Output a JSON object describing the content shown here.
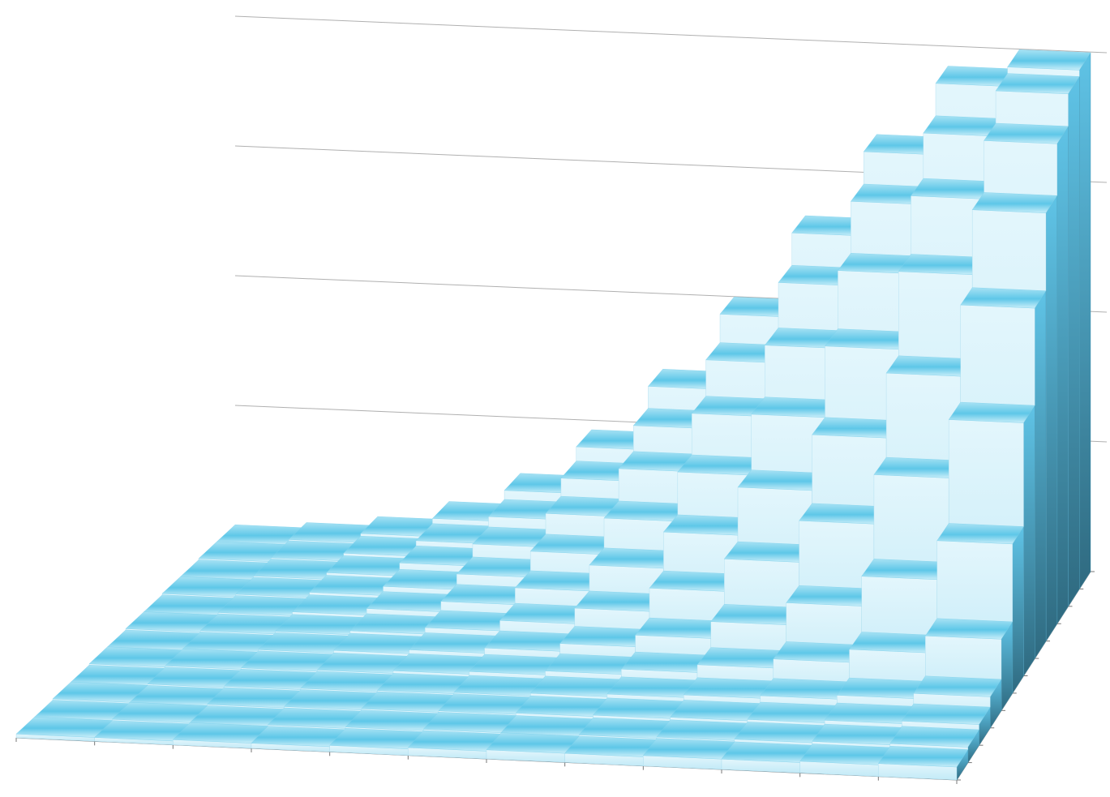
{
  "chart_data": {
    "type": "bar3d",
    "title": "",
    "xlabel": "",
    "ylabel": "",
    "zlabel": "",
    "rows": 12,
    "cols": 12,
    "zlim": [
      0,
      4
    ],
    "gridlines": [
      1,
      2,
      3,
      4
    ],
    "grid": true,
    "values": [
      [
        0.03,
        0.03,
        0.04,
        0.04,
        0.05,
        0.06,
        0.07,
        0.07,
        0.08,
        0.08,
        0.09,
        0.1
      ],
      [
        0.03,
        0.04,
        0.04,
        0.05,
        0.06,
        0.07,
        0.07,
        0.08,
        0.09,
        0.1,
        0.11,
        0.12
      ],
      [
        0.04,
        0.04,
        0.05,
        0.06,
        0.07,
        0.08,
        0.09,
        0.1,
        0.11,
        0.12,
        0.14,
        0.16
      ],
      [
        0.04,
        0.05,
        0.06,
        0.07,
        0.08,
        0.09,
        0.11,
        0.13,
        0.15,
        0.17,
        0.2,
        0.24
      ],
      [
        0.05,
        0.06,
        0.07,
        0.08,
        0.1,
        0.12,
        0.15,
        0.19,
        0.25,
        0.32,
        0.42,
        0.55
      ],
      [
        0.05,
        0.06,
        0.08,
        0.1,
        0.13,
        0.17,
        0.23,
        0.32,
        0.45,
        0.62,
        0.85,
        1.15
      ],
      [
        0.06,
        0.07,
        0.09,
        0.12,
        0.17,
        0.25,
        0.37,
        0.55,
        0.8,
        1.12,
        1.5,
        1.95
      ],
      [
        0.06,
        0.08,
        0.11,
        0.16,
        0.24,
        0.37,
        0.57,
        0.85,
        1.22,
        1.65,
        2.15,
        2.7
      ],
      [
        0.07,
        0.09,
        0.13,
        0.2,
        0.32,
        0.52,
        0.8,
        1.18,
        1.65,
        2.2,
        2.8,
        3.3
      ],
      [
        0.07,
        0.1,
        0.15,
        0.25,
        0.42,
        0.68,
        1.05,
        1.5,
        2.05,
        2.65,
        3.25,
        3.7
      ],
      [
        0.08,
        0.11,
        0.17,
        0.29,
        0.5,
        0.82,
        1.25,
        1.78,
        2.4,
        3.05,
        3.6,
        3.95
      ],
      [
        0.08,
        0.12,
        0.19,
        0.33,
        0.57,
        0.93,
        1.42,
        2.0,
        2.65,
        3.3,
        3.85,
        4.0
      ]
    ],
    "colors": {
      "top": "#5ec7e8",
      "front": "#d4eff9",
      "side": "#4aa9cc",
      "side_dark": "#2e6b82",
      "grid": "#b0b0b0",
      "axis": "#777777"
    }
  }
}
